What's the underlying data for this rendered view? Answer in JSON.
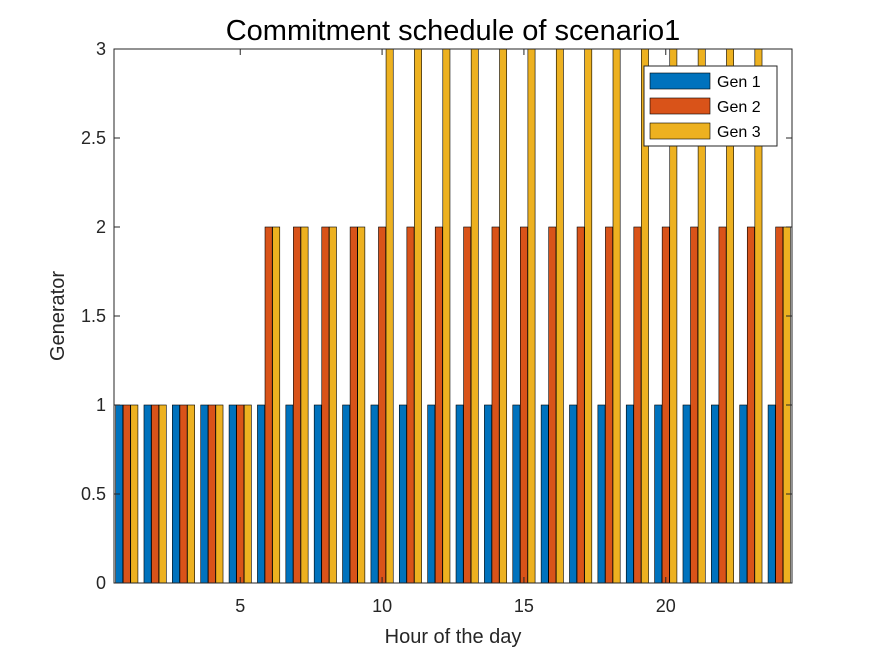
{
  "chart_data": {
    "type": "bar",
    "title": "Commitment schedule of scenario1",
    "xlabel": "Hour of the day",
    "ylabel": "Generator",
    "categories": [
      1,
      2,
      3,
      4,
      5,
      6,
      7,
      8,
      9,
      10,
      11,
      12,
      13,
      14,
      15,
      16,
      17,
      18,
      19,
      20,
      21,
      22,
      23,
      24
    ],
    "series": [
      {
        "name": "Gen 1",
        "color": "#0072BD",
        "values": [
          1,
          1,
          1,
          1,
          1,
          1,
          1,
          1,
          1,
          1,
          1,
          1,
          1,
          1,
          1,
          1,
          1,
          1,
          1,
          1,
          1,
          1,
          1,
          1
        ]
      },
      {
        "name": "Gen 2",
        "color": "#D95319",
        "values": [
          1,
          1,
          1,
          1,
          1,
          2,
          2,
          2,
          2,
          2,
          2,
          2,
          2,
          2,
          2,
          2,
          2,
          2,
          2,
          2,
          2,
          2,
          2,
          2
        ]
      },
      {
        "name": "Gen 3",
        "color": "#EDB120",
        "values": [
          1,
          1,
          1,
          1,
          1,
          2,
          2,
          2,
          2,
          3,
          3,
          3,
          3,
          3,
          3,
          3,
          3,
          3,
          3,
          3,
          3,
          3,
          3,
          2
        ]
      }
    ],
    "ylim": [
      0,
      3
    ],
    "xlim": [
      0.55,
      24.45
    ],
    "yticks": [
      "0",
      "0.5",
      "1",
      "1.5",
      "2",
      "2.5",
      "3"
    ],
    "xticks": [
      "5",
      "10",
      "15",
      "20"
    ],
    "legend": "top-right",
    "grid": false
  }
}
